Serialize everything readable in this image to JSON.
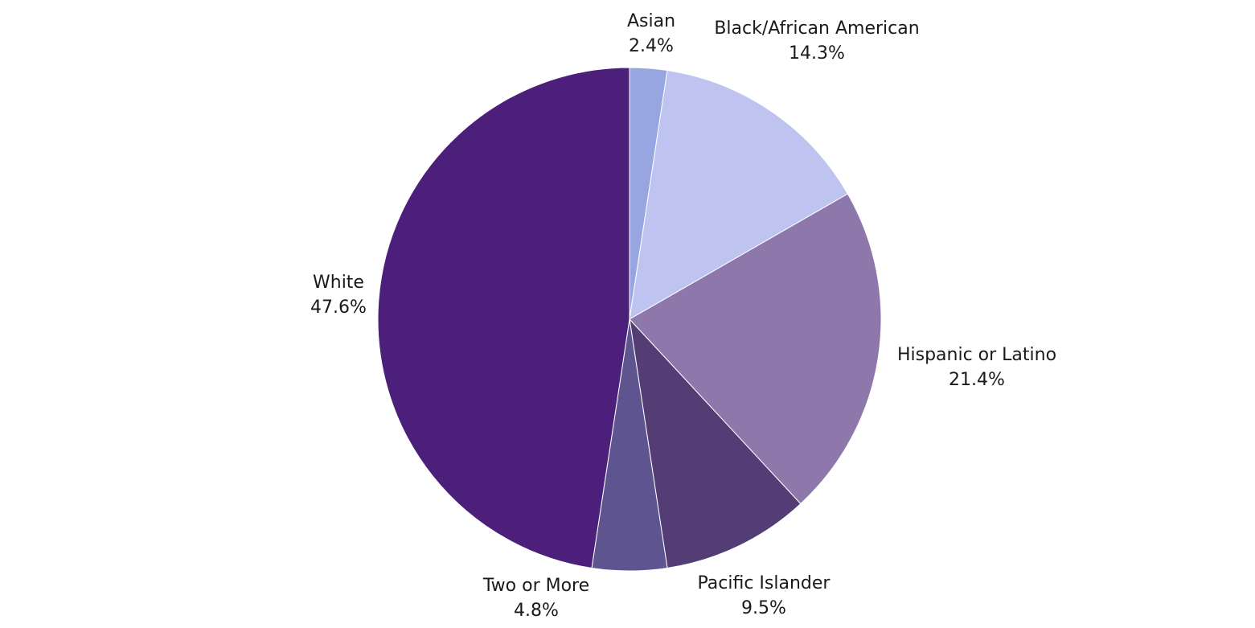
{
  "chart_data": {
    "type": "pie",
    "categories": [
      "Asian",
      "Black/African American",
      "Hispanic or Latino",
      "Pacific Islander",
      "Two or More",
      "White"
    ],
    "values": [
      2.4,
      14.3,
      21.4,
      9.5,
      4.8,
      47.6
    ],
    "value_labels": [
      "2.4%",
      "14.3%",
      "21.4%",
      "9.5%",
      "4.8%",
      "47.6%"
    ],
    "colors": [
      "#97a6e0",
      "#bfc3ef",
      "#8e78ab",
      "#543c75",
      "#5e5490",
      "#4c1f7b"
    ]
  }
}
